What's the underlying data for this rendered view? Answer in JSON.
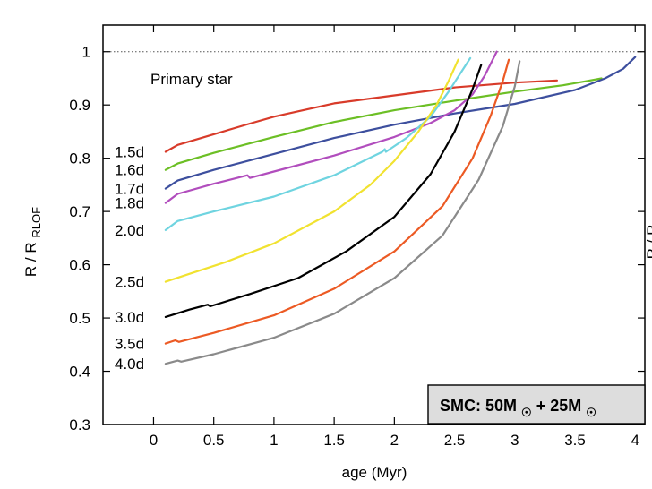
{
  "chart_data": {
    "type": "line",
    "xlabel": "age (Myr)",
    "ylabel": "R / R",
    "ylabel_sub": "RLOF",
    "xlim": [
      -0.42,
      4.08
    ],
    "ylim": [
      0.3,
      1.05
    ],
    "xticks": [
      0,
      0.5,
      1,
      1.5,
      2,
      2.5,
      3,
      3.5,
      4
    ],
    "xtick_labels": [
      "0",
      "0.5",
      "1",
      "1.5",
      "2",
      "2.5",
      "3",
      "3.5",
      "4"
    ],
    "yticks": [
      0.3,
      0.4,
      0.5,
      0.6,
      0.7,
      0.8,
      0.9,
      1.0
    ],
    "ytick_labels": [
      "0.3",
      "0.4",
      "0.5",
      "0.6",
      "0.7",
      "0.8",
      "0.9",
      "1"
    ],
    "grid": false,
    "reference_line": {
      "y": 1.0,
      "style": "dotted"
    },
    "annotation": "Primary star",
    "info_box": {
      "text_main": "SMC: 50M",
      "text_mid": " + 25M",
      "position": "bottom-right"
    },
    "right_axis_fragment": "R / R",
    "series": [
      {
        "label": "1.5d",
        "color": "#d83b2a",
        "points": [
          [
            0.1,
            0.812
          ],
          [
            0.2,
            0.825
          ],
          [
            0.5,
            0.845
          ],
          [
            0.8,
            0.865
          ],
          [
            1.0,
            0.878
          ],
          [
            1.2,
            0.888
          ],
          [
            1.5,
            0.903
          ],
          [
            2.0,
            0.918
          ],
          [
            2.5,
            0.933
          ],
          [
            3.0,
            0.942
          ],
          [
            3.35,
            0.946
          ]
        ]
      },
      {
        "label": "1.6d",
        "color": "#6cbf25",
        "points": [
          [
            0.1,
            0.778
          ],
          [
            0.2,
            0.79
          ],
          [
            0.5,
            0.81
          ],
          [
            1.0,
            0.84
          ],
          [
            1.5,
            0.868
          ],
          [
            2.0,
            0.89
          ],
          [
            2.5,
            0.908
          ],
          [
            3.0,
            0.925
          ],
          [
            3.4,
            0.937
          ],
          [
            3.6,
            0.945
          ],
          [
            3.72,
            0.95
          ]
        ]
      },
      {
        "label": "1.7d",
        "color": "#3d4f9e",
        "points": [
          [
            0.1,
            0.743
          ],
          [
            0.2,
            0.758
          ],
          [
            0.5,
            0.778
          ],
          [
            1.0,
            0.808
          ],
          [
            1.5,
            0.838
          ],
          [
            2.0,
            0.863
          ],
          [
            2.5,
            0.884
          ],
          [
            3.0,
            0.902
          ],
          [
            3.5,
            0.928
          ],
          [
            3.75,
            0.95
          ],
          [
            3.9,
            0.968
          ],
          [
            4.0,
            0.99
          ]
        ]
      },
      {
        "label": "1.8d",
        "color": "#b14dbd",
        "points": [
          [
            0.1,
            0.716
          ],
          [
            0.2,
            0.733
          ],
          [
            0.5,
            0.752
          ],
          [
            0.78,
            0.768
          ],
          [
            0.8,
            0.763
          ],
          [
            1.0,
            0.775
          ],
          [
            1.5,
            0.805
          ],
          [
            2.0,
            0.84
          ],
          [
            2.3,
            0.866
          ],
          [
            2.5,
            0.89
          ],
          [
            2.65,
            0.92
          ],
          [
            2.75,
            0.955
          ],
          [
            2.85,
            1.0
          ]
        ]
      },
      {
        "label": "2.0d",
        "color": "#6fd4e0",
        "points": [
          [
            0.1,
            0.665
          ],
          [
            0.2,
            0.682
          ],
          [
            0.5,
            0.7
          ],
          [
            1.0,
            0.728
          ],
          [
            1.5,
            0.768
          ],
          [
            1.9,
            0.812
          ],
          [
            1.92,
            0.817
          ],
          [
            1.93,
            0.812
          ],
          [
            2.1,
            0.838
          ],
          [
            2.3,
            0.878
          ],
          [
            2.45,
            0.925
          ],
          [
            2.55,
            0.96
          ],
          [
            2.63,
            0.988
          ]
        ]
      },
      {
        "label": "2.5d",
        "color": "#f1e230",
        "points": [
          [
            0.1,
            0.568
          ],
          [
            0.3,
            0.583
          ],
          [
            0.6,
            0.605
          ],
          [
            1.0,
            0.64
          ],
          [
            1.5,
            0.7
          ],
          [
            1.8,
            0.75
          ],
          [
            2.0,
            0.795
          ],
          [
            2.2,
            0.85
          ],
          [
            2.35,
            0.9
          ],
          [
            2.45,
            0.945
          ],
          [
            2.53,
            0.985
          ]
        ]
      },
      {
        "label": "3.0d",
        "color": "#000000",
        "points": [
          [
            0.1,
            0.502
          ],
          [
            0.3,
            0.516
          ],
          [
            0.45,
            0.525
          ],
          [
            0.47,
            0.522
          ],
          [
            0.8,
            0.545
          ],
          [
            1.2,
            0.575
          ],
          [
            1.6,
            0.625
          ],
          [
            2.0,
            0.69
          ],
          [
            2.3,
            0.77
          ],
          [
            2.5,
            0.85
          ],
          [
            2.65,
            0.93
          ],
          [
            2.72,
            0.975
          ]
        ]
      },
      {
        "label": "3.5d",
        "color": "#ec5a24",
        "points": [
          [
            0.1,
            0.452
          ],
          [
            0.18,
            0.458
          ],
          [
            0.21,
            0.455
          ],
          [
            0.5,
            0.472
          ],
          [
            1.0,
            0.505
          ],
          [
            1.5,
            0.555
          ],
          [
            2.0,
            0.625
          ],
          [
            2.4,
            0.71
          ],
          [
            2.65,
            0.8
          ],
          [
            2.8,
            0.88
          ],
          [
            2.9,
            0.945
          ],
          [
            2.95,
            0.985
          ]
        ]
      },
      {
        "label": "4.0d",
        "color": "#8a8a8a",
        "points": [
          [
            0.1,
            0.414
          ],
          [
            0.2,
            0.42
          ],
          [
            0.23,
            0.418
          ],
          [
            0.5,
            0.432
          ],
          [
            1.0,
            0.463
          ],
          [
            1.5,
            0.508
          ],
          [
            2.0,
            0.575
          ],
          [
            2.4,
            0.655
          ],
          [
            2.7,
            0.76
          ],
          [
            2.9,
            0.86
          ],
          [
            3.0,
            0.935
          ],
          [
            3.04,
            0.982
          ]
        ]
      }
    ]
  }
}
